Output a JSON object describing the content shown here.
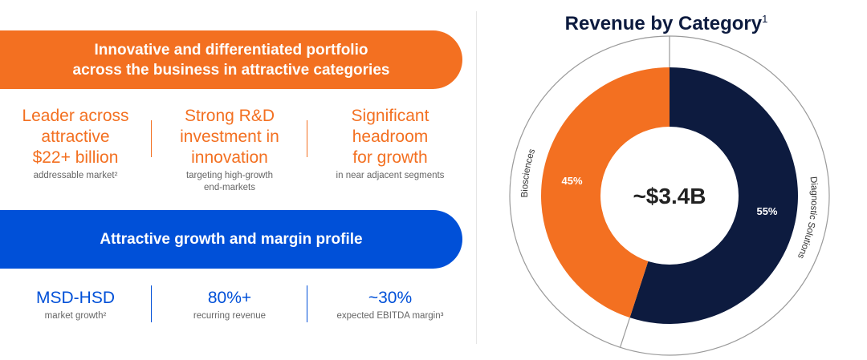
{
  "left": {
    "banner_top": {
      "line1": "Innovative and differentiated portfolio",
      "line2": "across the business in attractive categories"
    },
    "features": [
      {
        "lines": [
          "Leader across",
          "attractive",
          "$22+ billion"
        ],
        "sub": [
          "addressable market²"
        ]
      },
      {
        "lines": [
          "Strong R&D",
          "investment in",
          "innovation"
        ],
        "sub": [
          "targeting high-growth",
          "end-markets"
        ]
      },
      {
        "lines": [
          "Significant",
          "headroom",
          "for growth"
        ],
        "sub": [
          "in near adjacent segments"
        ]
      }
    ],
    "banner_bottom": "Attractive growth and margin profile",
    "metrics": [
      {
        "value": "MSD-HSD",
        "sub": "market growth²"
      },
      {
        "value": "80%+",
        "sub": "recurring revenue"
      },
      {
        "value": "~30%",
        "sub": "expected EBITDA margin³"
      }
    ]
  },
  "chart_data": {
    "type": "pie",
    "title": "Revenue by Category",
    "title_superscript": "1",
    "center_label": "~$3.4B",
    "slices": [
      {
        "name": "Diagnostic Solutions",
        "value": 55,
        "label": "55%",
        "color": "#0d1b3f"
      },
      {
        "name": "Biosciences",
        "value": 45,
        "label": "45%",
        "color": "#f37021"
      }
    ]
  }
}
